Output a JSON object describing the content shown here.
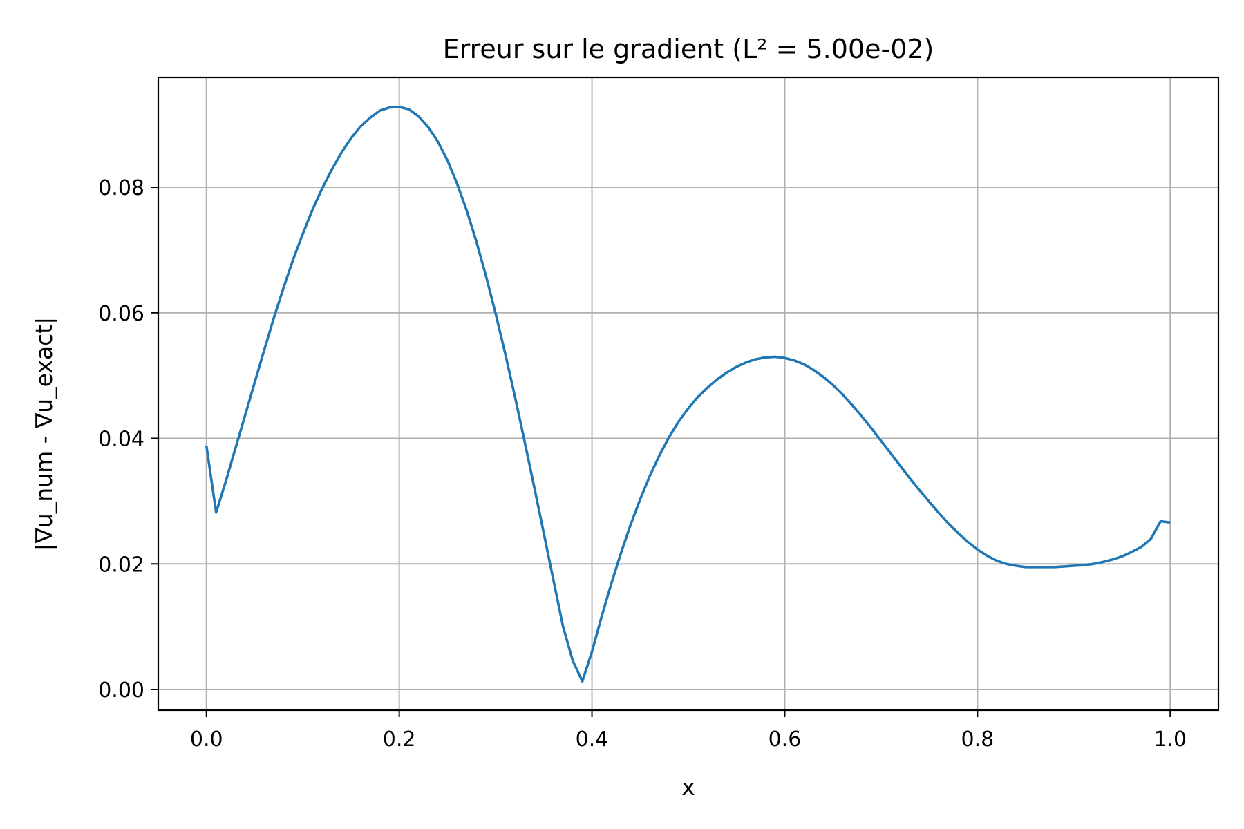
{
  "chart_data": {
    "type": "line",
    "title": "Erreur sur le gradient (L² = 5.00e-02)",
    "xlabel": "x",
    "ylabel": "|∇u_num - ∇u_exact|",
    "xlim": [
      -0.05,
      1.05
    ],
    "ylim": [
      -0.0033,
      0.0975
    ],
    "x_ticks": [
      0.0,
      0.2,
      0.4,
      0.6,
      0.8,
      1.0
    ],
    "x_tick_labels": [
      "0.0",
      "0.2",
      "0.4",
      "0.6",
      "0.8",
      "1.0"
    ],
    "y_ticks": [
      0.0,
      0.02,
      0.04,
      0.06,
      0.08
    ],
    "y_tick_labels": [
      "0.00",
      "0.02",
      "0.04",
      "0.06",
      "0.08"
    ],
    "grid": true,
    "series": [
      {
        "color": "#1f77b4",
        "x": [
          0.0,
          0.01,
          0.02,
          0.03,
          0.04,
          0.05,
          0.06,
          0.07,
          0.08,
          0.09,
          0.1,
          0.11,
          0.12,
          0.13,
          0.14,
          0.15,
          0.16,
          0.17,
          0.18,
          0.19,
          0.2,
          0.21,
          0.22,
          0.23,
          0.24,
          0.25,
          0.26,
          0.27,
          0.28,
          0.29,
          0.3,
          0.31,
          0.32,
          0.33,
          0.34,
          0.35,
          0.36,
          0.37,
          0.38,
          0.39,
          0.4,
          0.41,
          0.42,
          0.43,
          0.44,
          0.45,
          0.46,
          0.47,
          0.48,
          0.49,
          0.5,
          0.51,
          0.52,
          0.53,
          0.54,
          0.55,
          0.56,
          0.57,
          0.58,
          0.59,
          0.6,
          0.61,
          0.62,
          0.63,
          0.64,
          0.65,
          0.66,
          0.67,
          0.68,
          0.69,
          0.7,
          0.71,
          0.72,
          0.73,
          0.74,
          0.75,
          0.76,
          0.77,
          0.78,
          0.79,
          0.8,
          0.81,
          0.82,
          0.83,
          0.84,
          0.85,
          0.86,
          0.87,
          0.88,
          0.89,
          0.9,
          0.91,
          0.92,
          0.93,
          0.94,
          0.95,
          0.96,
          0.97,
          0.98,
          0.99,
          1.0
        ],
        "values": [
          0.0388,
          0.0282,
          0.0331,
          0.0384,
          0.0436,
          0.0489,
          0.0541,
          0.0592,
          0.064,
          0.0685,
          0.0726,
          0.0764,
          0.0798,
          0.0828,
          0.0855,
          0.0878,
          0.0897,
          0.0911,
          0.0922,
          0.0927,
          0.0928,
          0.0924,
          0.0913,
          0.0896,
          0.0873,
          0.0843,
          0.0806,
          0.0763,
          0.0714,
          0.0659,
          0.0599,
          0.0535,
          0.0467,
          0.0396,
          0.0323,
          0.0249,
          0.0174,
          0.01,
          0.0046,
          0.0013,
          0.006,
          0.0116,
          0.0168,
          0.0217,
          0.0262,
          0.0303,
          0.034,
          0.0373,
          0.0402,
          0.0427,
          0.0448,
          0.0466,
          0.0481,
          0.0494,
          0.0505,
          0.0514,
          0.0521,
          0.0526,
          0.0529,
          0.053,
          0.0528,
          0.0524,
          0.0518,
          0.0509,
          0.0498,
          0.0485,
          0.047,
          0.0453,
          0.0435,
          0.0416,
          0.0396,
          0.0376,
          0.0356,
          0.0336,
          0.0317,
          0.0299,
          0.0281,
          0.0264,
          0.0249,
          0.0235,
          0.0223,
          0.0213,
          0.0205,
          0.02,
          0.0197,
          0.0195,
          0.0195,
          0.0195,
          0.0195,
          0.0196,
          0.0197,
          0.0198,
          0.02,
          0.0203,
          0.0207,
          0.0212,
          0.0219,
          0.0227,
          0.024,
          0.0268,
          0.0266
        ]
      }
    ]
  }
}
